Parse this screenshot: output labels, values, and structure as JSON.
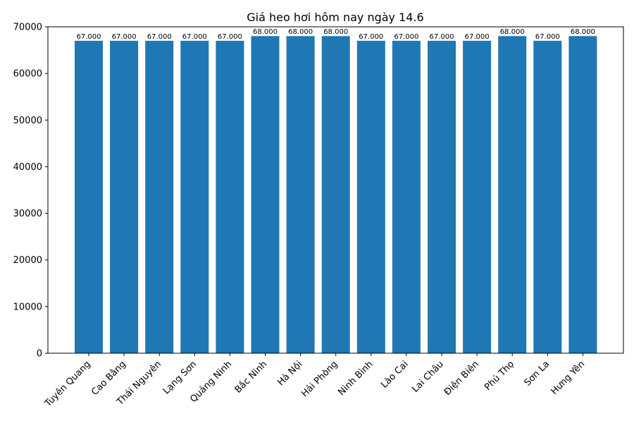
{
  "chart_data": {
    "type": "bar",
    "title": "Giá heo hơi hôm nay ngày 14.6",
    "xlabel": "",
    "ylabel": "",
    "ylim": [
      0,
      70000
    ],
    "yticks": [
      0,
      10000,
      20000,
      30000,
      40000,
      50000,
      60000,
      70000
    ],
    "grid": false,
    "bar_color": "#1f77b4",
    "categories": [
      "Tuyên Quang",
      "Cao Bằng",
      "Thái Nguyên",
      "Lạng Sơn",
      "Quảng Ninh",
      "Bắc Ninh",
      "Hà Nội",
      "Hải Phòng",
      "Ninh Bình",
      "Lào Cai",
      "Lai Châu",
      "Điện Biên",
      "Phú Thọ",
      "Sơn La",
      "Hưng Yên"
    ],
    "values": [
      67000,
      67000,
      67000,
      67000,
      67000,
      68000,
      68000,
      68000,
      67000,
      67000,
      67000,
      67000,
      68000,
      67000,
      68000
    ],
    "data_labels": [
      "67.000",
      "67.000",
      "67.000",
      "67.000",
      "67.000",
      "68.000",
      "68.000",
      "68.000",
      "67.000",
      "67.000",
      "67.000",
      "67.000",
      "68.000",
      "67.000",
      "68.000"
    ]
  }
}
